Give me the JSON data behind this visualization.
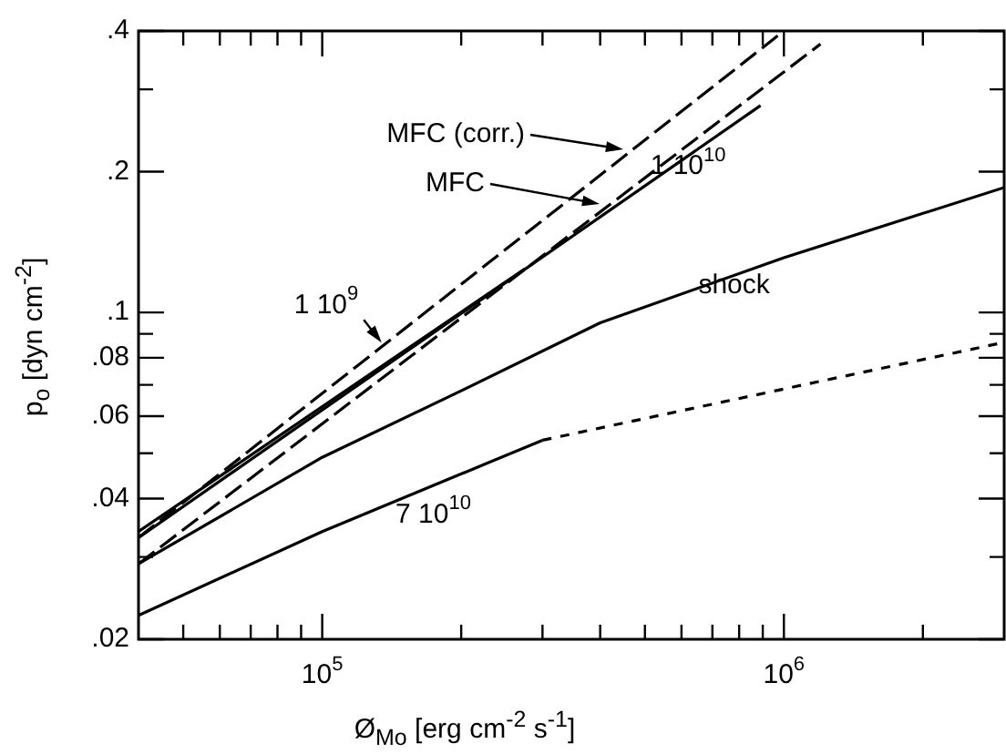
{
  "chart_data": {
    "type": "line",
    "xlabel": "Ø$_{Mo}$ [erg cm$^{-2}$ s$^{-1}$]",
    "ylabel": "p$_{o}$ [dyn cm$^{-2}$]",
    "log": "xy",
    "grid": false,
    "legend": false,
    "marker": "none",
    "xlim": [
      40000,
      3000000
    ],
    "ylim": [
      0.02,
      0.4
    ],
    "xticks": [
      {
        "value": 50000,
        "label": null
      },
      {
        "value": 60000,
        "label": null
      },
      {
        "value": 70000,
        "label": null
      },
      {
        "value": 80000,
        "label": null
      },
      {
        "value": 90000,
        "label": null
      },
      {
        "value": 100000,
        "label": "10$^{5}$"
      },
      {
        "value": 200000,
        "label": null
      },
      {
        "value": 300000,
        "label": null
      },
      {
        "value": 400000,
        "label": null
      },
      {
        "value": 500000,
        "label": null
      },
      {
        "value": 600000,
        "label": null
      },
      {
        "value": 700000,
        "label": null
      },
      {
        "value": 800000,
        "label": null
      },
      {
        "value": 900000,
        "label": null
      },
      {
        "value": 1000000,
        "label": "10$^{6}$"
      },
      {
        "value": 2000000,
        "label": null
      }
    ],
    "yticks": [
      {
        "value": 0.02,
        "label": ".02"
      },
      {
        "value": 0.03,
        "label": null
      },
      {
        "value": 0.04,
        "label": ".04"
      },
      {
        "value": 0.05,
        "label": null
      },
      {
        "value": 0.06,
        "label": ".06"
      },
      {
        "value": 0.07,
        "label": null
      },
      {
        "value": 0.08,
        "label": ".08"
      },
      {
        "value": 0.09,
        "label": null
      },
      {
        "value": 0.1,
        "label": ".1"
      },
      {
        "value": 0.2,
        "label": ".2"
      },
      {
        "value": 0.3,
        "label": null
      },
      {
        "value": 0.4,
        "label": ".4"
      }
    ],
    "series": [
      {
        "type": "line",
        "color": "#000000",
        "line_style": "dashed",
        "x": [
          40000,
          1000000
        ],
        "values": [
          0.033,
          0.4
        ]
      },
      {
        "type": "line",
        "color": "#000000",
        "line_style": "dashed",
        "x": [
          40000,
          1200000
        ],
        "values": [
          0.029,
          0.375
        ]
      },
      {
        "type": "line",
        "color": "#000000",
        "line_style": "solid",
        "x": [
          40000,
          890000
        ],
        "values": [
          0.033,
          0.277
        ]
      },
      {
        "type": "line",
        "color": "#000000",
        "line_style": "solid",
        "x": [
          40000,
          275000
        ],
        "values": [
          0.034,
          0.124
        ]
      },
      {
        "type": "line",
        "color": "#000000",
        "line_style": "solid",
        "x": [
          40000,
          100000,
          200000,
          400000,
          1000000,
          3000000
        ],
        "values": [
          0.029,
          0.049,
          0.068,
          0.095,
          0.131,
          0.185
        ]
      },
      {
        "type": "line",
        "color": "#000000",
        "line_style": "solid",
        "x": [
          40000,
          100000,
          300000
        ],
        "values": [
          0.0225,
          0.034,
          0.0533
        ]
      },
      {
        "type": "line",
        "color": "#000000",
        "line_style": "dotted",
        "x": [
          300000,
          1000000,
          3000000
        ],
        "values": [
          0.0533,
          0.0686,
          0.0863
        ]
      }
    ],
    "annotations": [
      "MFC (corr.)",
      "MFC",
      {
        "text": "1 10$^{9}$",
        "x": 136000,
        "y": 0.085
      },
      {
        "text": "1 10$^{10}$",
        "x": 620000,
        "y": 0.205
      },
      {
        "text": "shock",
        "x": 780000,
        "y": 0.114
      },
      {
        "text": "7 10$^{10}$",
        "x": 174000,
        "y": 0.0426
      }
    ]
  }
}
